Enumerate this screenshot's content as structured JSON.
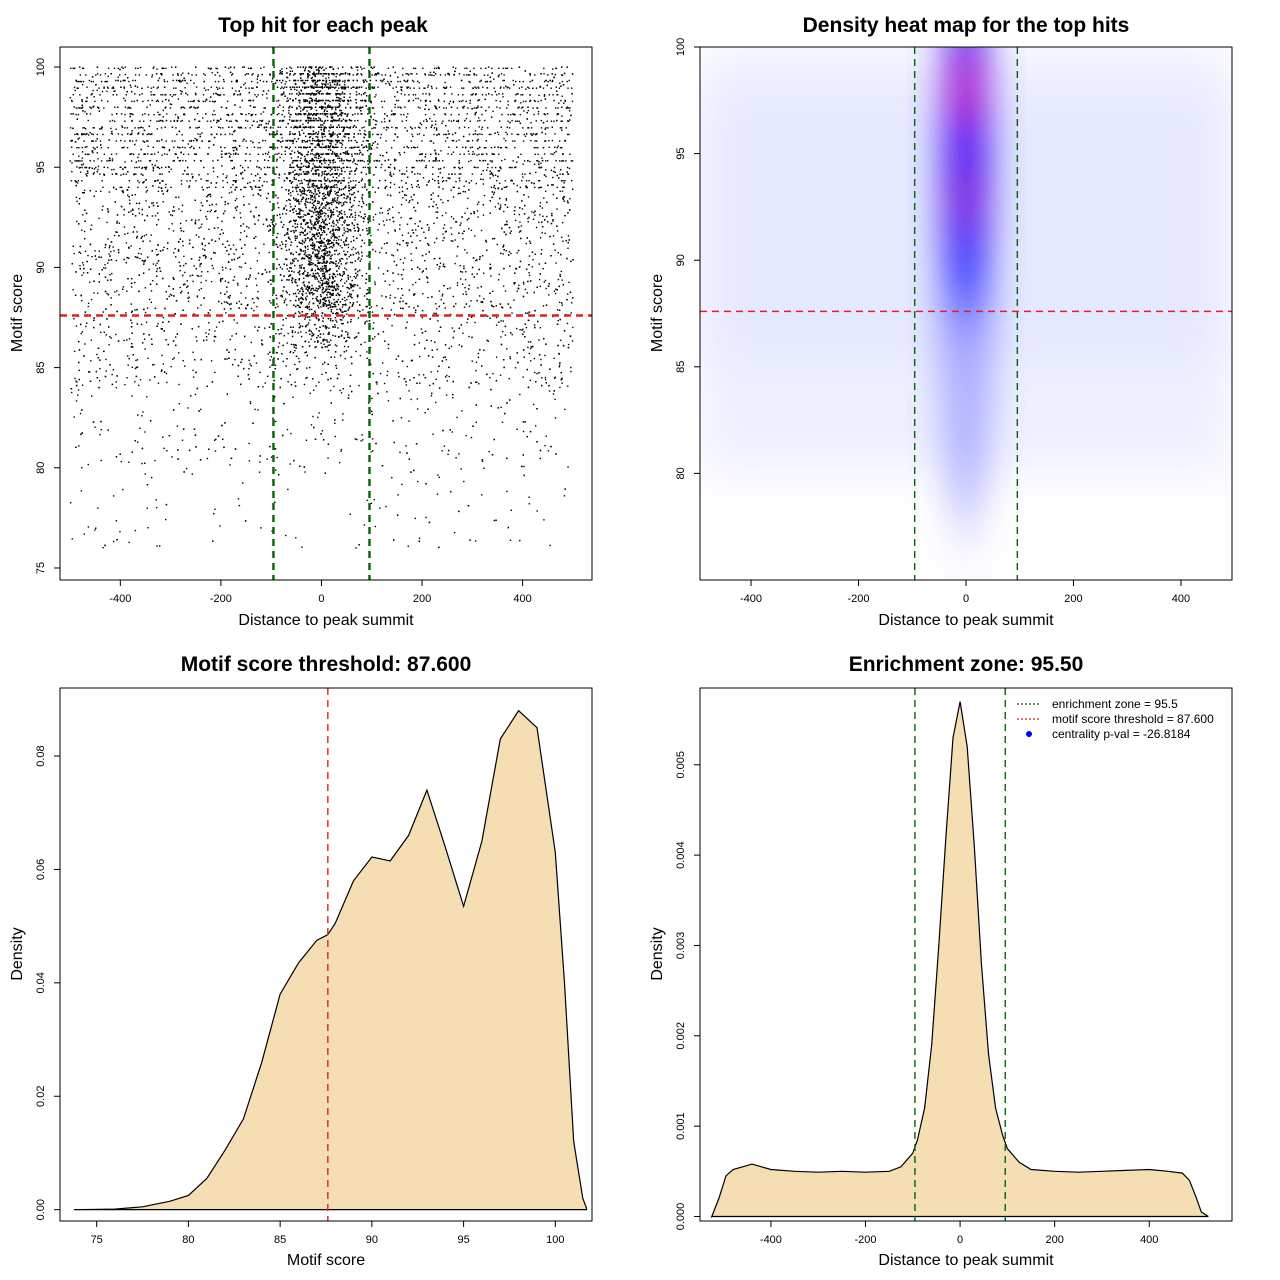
{
  "chart_data": [
    {
      "type": "scatter",
      "title": "Top hit for each peak",
      "xlabel": "Distance to peak summit",
      "ylabel": "Motif score",
      "xlim": [
        -500,
        500
      ],
      "ylim": [
        75,
        100
      ],
      "xticks": [
        -400,
        -200,
        0,
        200,
        400
      ],
      "yticks": [
        75,
        80,
        85,
        90,
        95,
        100
      ],
      "hlines": [
        {
          "y": 87.6,
          "color": "#dd2222",
          "style": "dashed"
        }
      ],
      "vlines": [
        {
          "x": -95.5,
          "color": "#006600",
          "style": "dashed"
        },
        {
          "x": 95.5,
          "color": "#006600",
          "style": "dashed"
        }
      ],
      "points_description_values": {
        "background_x_range": [
          -500,
          500
        ],
        "central_x_range": [
          -95.5,
          95.5
        ],
        "dense_score_range": [
          80,
          100
        ]
      }
    },
    {
      "type": "heatmap",
      "title": "Density heat map for the top hits",
      "xlabel": "Distance to peak summit",
      "ylabel": "Motif score",
      "xlim": [
        -500,
        500
      ],
      "ylim": [
        75,
        100
      ],
      "xticks": [
        -400,
        -200,
        0,
        200,
        400
      ],
      "yticks": [
        80,
        85,
        90,
        95,
        100
      ],
      "hot_spots": [
        {
          "x": 0,
          "y": 98,
          "intensity": 1.0
        },
        {
          "x": 0,
          "y": 93,
          "intensity": 0.8
        },
        {
          "x": 0,
          "y": 89,
          "intensity": 0.35
        }
      ],
      "color_scale": [
        "#ffffff",
        "#0000ff",
        "#ff0000"
      ],
      "hlines": [
        {
          "y": 87.6,
          "color": "#dd2222",
          "style": "dashed"
        }
      ],
      "vlines": [
        {
          "x": -95.5,
          "color": "#006600",
          "style": "dashed"
        },
        {
          "x": 95.5,
          "color": "#006600",
          "style": "dashed"
        }
      ]
    },
    {
      "type": "area",
      "title": "Motif score threshold: 87.600",
      "xlabel": "Motif score",
      "ylabel": "Density",
      "xlim": [
        73,
        102
      ],
      "ylim": [
        -0.002,
        0.092
      ],
      "xticks": [
        75,
        80,
        85,
        90,
        95,
        100
      ],
      "yticks": [
        0.0,
        0.02,
        0.04,
        0.06,
        0.08
      ],
      "ytick_labels": [
        "0.00",
        "0.02",
        "0.04",
        "0.06",
        "0.08"
      ],
      "fill_color": "#f5deb3",
      "vlines": [
        {
          "x": 87.6,
          "color": "#dd2222",
          "style": "dashed"
        }
      ],
      "x": [
        73.8,
        76,
        77.5,
        79,
        80,
        81,
        82,
        83,
        84,
        85,
        86,
        87,
        87.6,
        88,
        89,
        90,
        91,
        92,
        93,
        94,
        95,
        96,
        97,
        98,
        99,
        100,
        100.5,
        101,
        101.5,
        101.7
      ],
      "values": [
        0.0,
        0.0001,
        0.0005,
        0.0015,
        0.0025,
        0.0055,
        0.0105,
        0.016,
        0.026,
        0.038,
        0.0435,
        0.0475,
        0.0485,
        0.0505,
        0.058,
        0.0622,
        0.0615,
        0.066,
        0.074,
        0.064,
        0.0535,
        0.065,
        0.083,
        0.088,
        0.085,
        0.063,
        0.04,
        0.012,
        0.002,
        0.0003
      ]
    },
    {
      "type": "area",
      "title": "Enrichment zone: 95.50",
      "xlabel": "Distance to peak summit",
      "ylabel": "Density",
      "xlim": [
        -550,
        575
      ],
      "ylim": [
        -5e-05,
        0.00585
      ],
      "xticks": [
        -400,
        -200,
        0,
        200,
        400
      ],
      "yticks": [
        0.0,
        0.001,
        0.002,
        0.003,
        0.004,
        0.005
      ],
      "ytick_labels": [
        "0.000",
        "0.001",
        "0.002",
        "0.003",
        "0.004",
        "0.005"
      ],
      "fill_color": "#f5deb3",
      "vlines": [
        {
          "x": -95.5,
          "color": "#006600",
          "style": "dashed"
        },
        {
          "x": 95.5,
          "color": "#006600",
          "style": "dashed"
        }
      ],
      "x": [
        -525,
        -510,
        -495,
        -480,
        -460,
        -440,
        -420,
        -400,
        -350,
        -300,
        -250,
        -200,
        -150,
        -125,
        -100,
        -90,
        -75,
        -60,
        -45,
        -30,
        -15,
        0,
        15,
        30,
        45,
        60,
        75,
        90,
        100,
        125,
        150,
        200,
        250,
        300,
        350,
        400,
        440,
        470,
        485,
        500,
        510,
        525
      ],
      "values": [
        0.0,
        0.0002,
        0.00045,
        0.00052,
        0.00055,
        0.00058,
        0.00055,
        0.00052,
        0.0005,
        0.00049,
        0.0005,
        0.00049,
        0.0005,
        0.00055,
        0.0007,
        0.00085,
        0.0012,
        0.0019,
        0.003,
        0.0042,
        0.0053,
        0.0057,
        0.0052,
        0.0041,
        0.0028,
        0.0018,
        0.0012,
        0.0009,
        0.00075,
        0.0006,
        0.00052,
        0.0005,
        0.00049,
        0.0005,
        0.00051,
        0.00052,
        0.0005,
        0.00048,
        0.0004,
        0.0002,
        5e-05,
        0.0
      ],
      "legend": {
        "position": "top-right",
        "entries": [
          {
            "label": "enrichment zone = 95.5",
            "color": "#006600",
            "marker": "dotted-line"
          },
          {
            "label": "motif score threshold = 87.600",
            "color": "#dd2222",
            "marker": "dotted-line"
          },
          {
            "label": "centrality p-val = -26.8184",
            "color": "#0000ff",
            "marker": "dot"
          }
        ]
      }
    }
  ]
}
